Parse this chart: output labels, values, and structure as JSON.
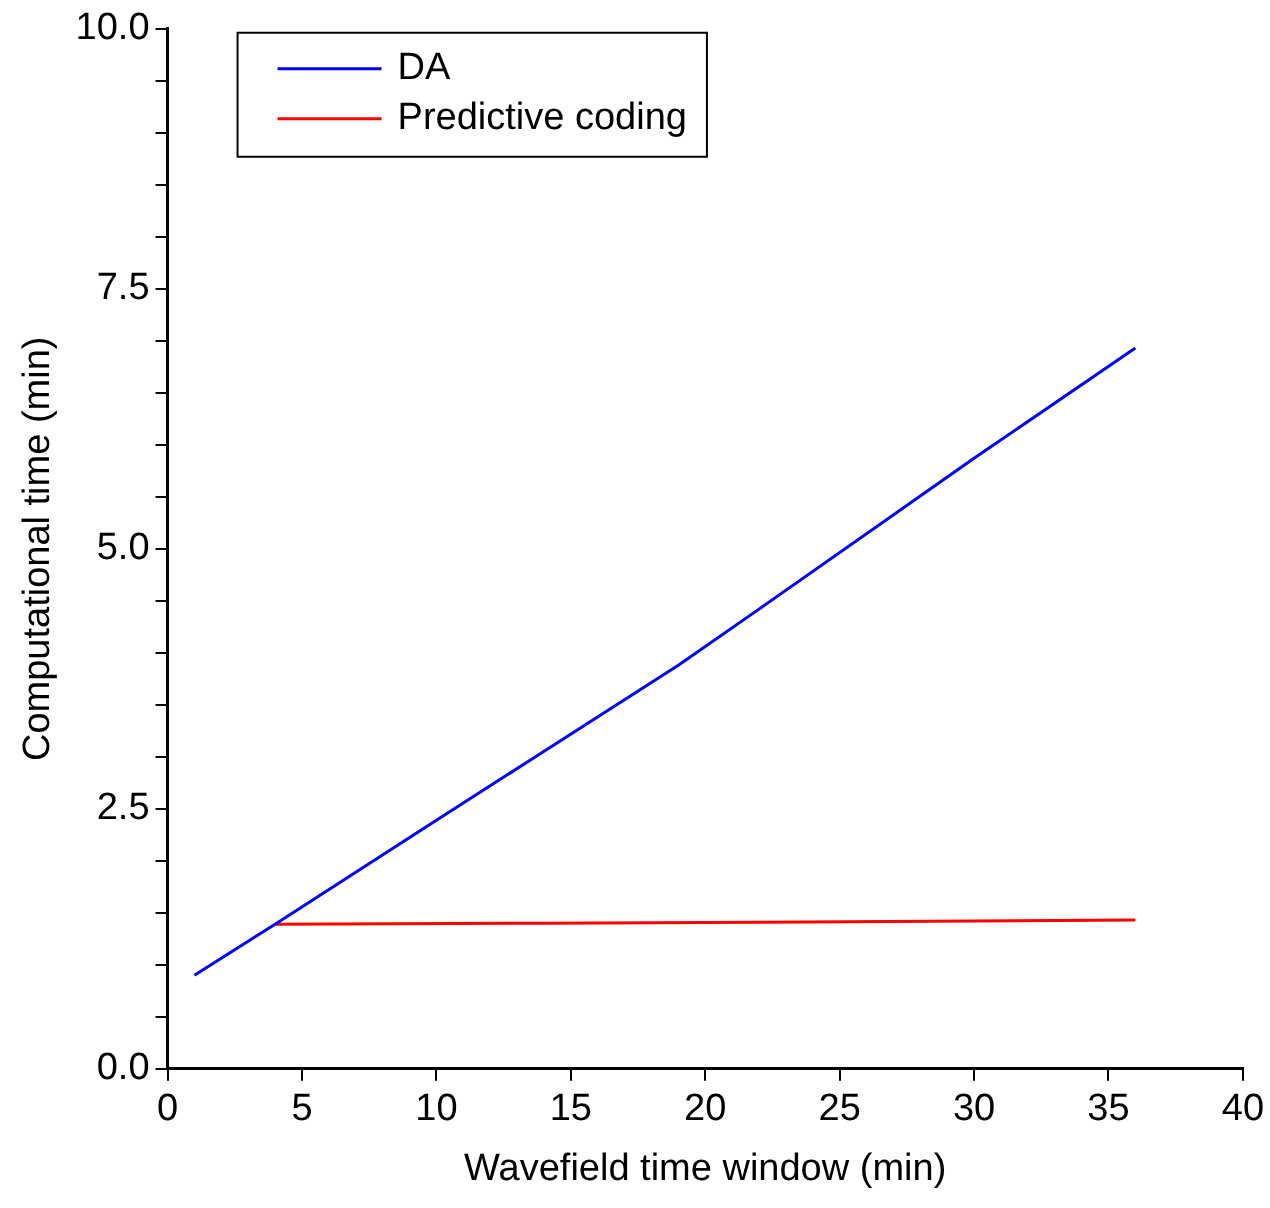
{
  "chart_data": {
    "type": "line",
    "xlabel": "Wavefield time window (min)",
    "ylabel": "Computational time (min)",
    "series": [
      {
        "name": "DA",
        "color": "#0000ff",
        "x": [
          1,
          4,
          10,
          19,
          22,
          30,
          36
        ],
        "values": [
          0.9,
          1.39,
          2.39,
          3.88,
          4.42,
          5.87,
          6.93
        ]
      },
      {
        "name": "Predictive coding",
        "color": "#ff0000",
        "x": [
          4,
          14,
          22,
          30,
          36
        ],
        "values": [
          1.39,
          1.4,
          1.41,
          1.42,
          1.43
        ]
      }
    ],
    "xlim": [
      0,
      40
    ],
    "xticks": [
      0,
      5,
      10,
      15,
      20,
      25,
      30,
      35,
      40
    ],
    "ylim": [
      0,
      10
    ],
    "yticks": [
      {
        "value": 0,
        "label": "0.0"
      },
      {
        "value": 0.5,
        "label": null
      },
      {
        "value": 1,
        "label": null
      },
      {
        "value": 1.5,
        "label": null
      },
      {
        "value": 2,
        "label": null
      },
      {
        "value": 2.5,
        "label": "2.5"
      },
      {
        "value": 3,
        "label": null
      },
      {
        "value": 3.5,
        "label": null
      },
      {
        "value": 4,
        "label": null
      },
      {
        "value": 4.5,
        "label": null
      },
      {
        "value": 5,
        "label": "5.0"
      },
      {
        "value": 5.5,
        "label": null
      },
      {
        "value": 6,
        "label": null
      },
      {
        "value": 6.5,
        "label": null
      },
      {
        "value": 7,
        "label": null
      },
      {
        "value": 7.5,
        "label": "7.5"
      },
      {
        "value": 8,
        "label": null
      },
      {
        "value": 8.5,
        "label": null
      },
      {
        "value": 9,
        "label": null
      },
      {
        "value": 9.5,
        "label": null
      },
      {
        "value": 10,
        "label": "10.0"
      }
    ],
    "grid": false,
    "legend": "top left",
    "marker": "none",
    "line_style": "solid"
  }
}
